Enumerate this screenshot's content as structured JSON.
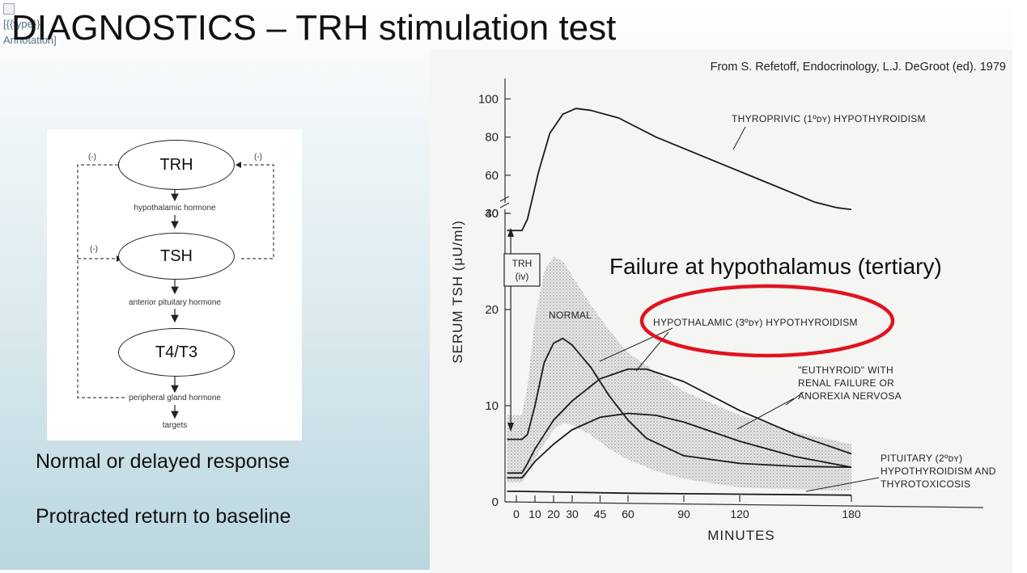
{
  "slide": {
    "title": "DIAGNOSTICS – TRH stimulation test",
    "broken_image_alt": "[{{type}} Annotation]",
    "bullets": [
      "Normal or delayed response",
      "Protracted return to baseline"
    ],
    "source_note": "From S. Refetoff, Endocrinology, L.J. DeGroot (ed). 1979",
    "annotation": "Failure at hypothalamus (tertiary)",
    "annotation_color": "#e0141e"
  },
  "diagram": {
    "nodes": [
      "TRH",
      "TSH",
      "T4/T3"
    ],
    "labels": [
      "hypothalamic hormone",
      "anterior pituitary hormone",
      "peripheral gland hormone",
      "targets"
    ],
    "feedback_sign": "(-)"
  },
  "chart_data": {
    "type": "line",
    "xlabel": "MINUTES",
    "ylabel": "SERUM TSH (μU/ml)",
    "x_ticks": [
      0,
      10,
      20,
      30,
      45,
      60,
      90,
      120,
      180
    ],
    "y_ticks_lower": [
      0,
      10,
      20,
      30
    ],
    "y_ticks_upper": [
      40,
      60,
      80,
      100
    ],
    "axis_break_between": [
      30,
      40
    ],
    "injection_label": [
      "TRH",
      "(iv)"
    ],
    "series": [
      {
        "name": "THYROPRIVIC (1°) HYPOTHYROIDISM",
        "x": [
          -5,
          3,
          6,
          12,
          18,
          25,
          32,
          40,
          55,
          75,
          100,
          130,
          160,
          172,
          180
        ],
        "y": [
          31,
          31,
          37,
          62,
          82,
          92,
          95,
          94,
          90,
          80,
          70,
          58,
          46,
          43,
          42
        ]
      },
      {
        "name": "HYPOTHALAMIC (3°) HYPOTHYROIDISM",
        "x": [
          -5,
          3,
          6,
          10,
          15,
          20,
          30,
          45,
          60,
          70,
          90,
          120,
          150,
          180
        ],
        "y": [
          3,
          3,
          4,
          5.5,
          7,
          8.5,
          10.5,
          12.8,
          13.8,
          13.8,
          12.5,
          9.5,
          7,
          5
        ]
      },
      {
        "name": "\"EUTHYROID\" WITH RENAL FAILURE OR ANOREXIA NERVOSA",
        "x": [
          -5,
          3,
          6,
          10,
          20,
          30,
          45,
          60,
          75,
          90,
          120,
          150,
          180
        ],
        "y": [
          2.5,
          2.5,
          3.2,
          4.2,
          6,
          7.5,
          8.8,
          9.2,
          9,
          8.3,
          6.3,
          4.7,
          3.6
        ]
      },
      {
        "name": "NORMAL",
        "x": [
          -5,
          3,
          6,
          10,
          15,
          20,
          25,
          30,
          40,
          50,
          60,
          70,
          90,
          120,
          150,
          180
        ],
        "y": [
          6.5,
          6.5,
          7,
          10,
          14.5,
          16.5,
          17,
          16.3,
          14,
          11,
          8.5,
          6.6,
          4.8,
          4,
          3.7,
          3.6
        ]
      },
      {
        "name": "PITUITARY (2°) HYPOTHYROIDISM AND THYROTOXICOSIS",
        "x": [
          -5,
          0,
          30,
          60,
          90,
          120,
          150,
          180
        ],
        "y": [
          1.1,
          1.1,
          1.0,
          0.9,
          0.85,
          0.8,
          0.75,
          0.7
        ]
      }
    ],
    "normal_range_band": {
      "x": [
        -5,
        3,
        6,
        10,
        15,
        20,
        25,
        30,
        40,
        50,
        60,
        75,
        90,
        120,
        150,
        180
      ],
      "upper": [
        9,
        9,
        12,
        19,
        24,
        25.5,
        25,
        23.5,
        20.5,
        17.8,
        15.5,
        13.5,
        11.5,
        9,
        7.3,
        6
      ],
      "lower": [
        2,
        2,
        3,
        4.5,
        6,
        7.5,
        8.2,
        8,
        7,
        5.5,
        4.4,
        3.2,
        2.4,
        1.5,
        1.3,
        1.2
      ]
    },
    "label_lines": [
      [
        "THYROPRIVIC (1ºᴅʏ) HYPOTHYROIDISM"
      ],
      [
        "HYPOTHALAMIC (3ºᴅʏ) HYPOTHYROIDISM"
      ],
      [
        "\"EUTHYROID\" WITH",
        "RENAL FAILURE  OR",
        "ANOREXIA NERVOSA"
      ],
      [
        "NORMAL"
      ],
      [
        "PITUITARY (2ºᴅʏ)",
        "HYPOTHYROIDISM AND",
        "THYROTOXICOSIS"
      ]
    ],
    "grid": false,
    "legend": "none"
  }
}
